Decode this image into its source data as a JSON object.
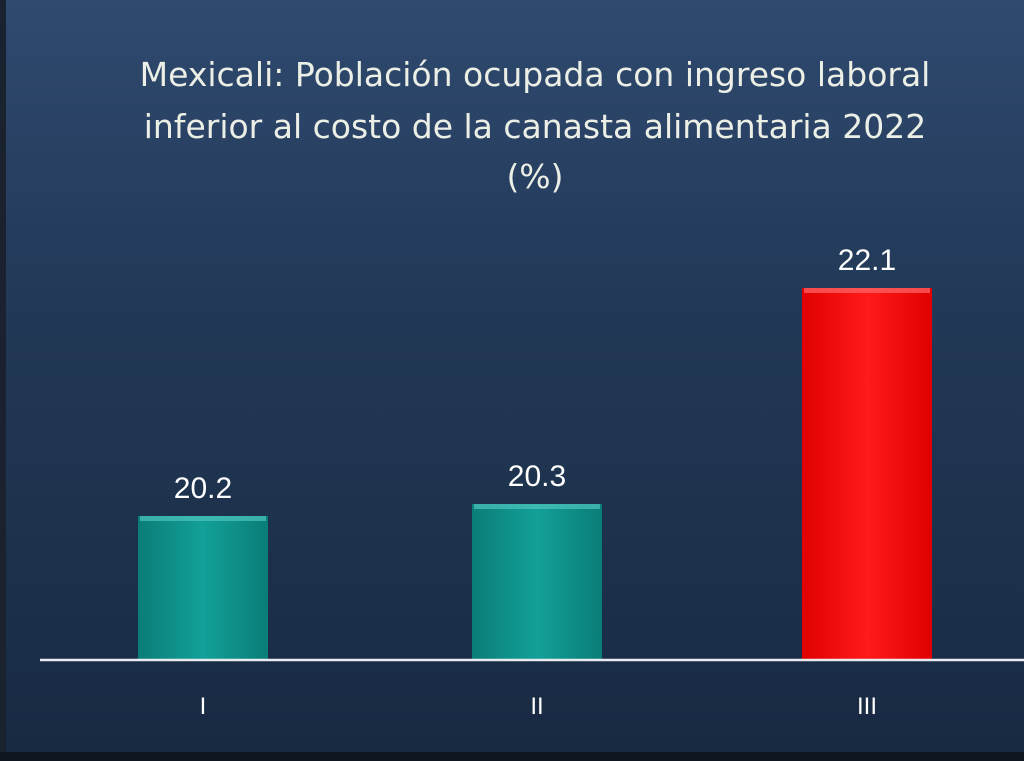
{
  "chart_data": {
    "type": "bar",
    "title": "Mexicali: Población ocupada con ingreso laboral",
    "title_line2": "inferior al costo de la canasta alimentaria 2022",
    "title_line3": "(%)",
    "categories": [
      "I",
      "II",
      "III"
    ],
    "values": [
      20.2,
      20.3,
      22.1
    ],
    "value_labels": [
      "20.2",
      "20.3",
      "22.1"
    ],
    "colors": [
      "#0b8d86",
      "#0b8d86",
      "#ff0a0a"
    ],
    "ylim": [
      19.0,
      22.2
    ],
    "grid": false,
    "legend": "none"
  }
}
